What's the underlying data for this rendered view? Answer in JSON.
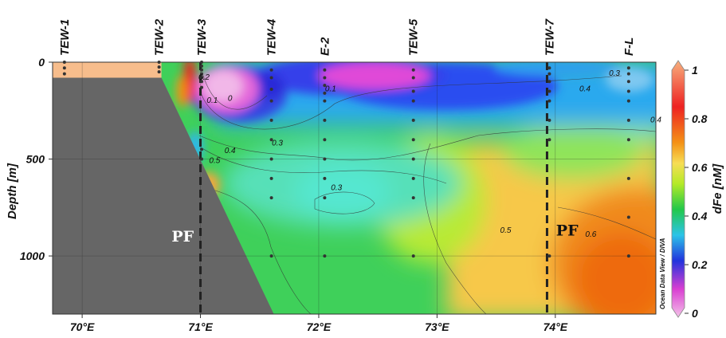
{
  "chart_data": {
    "type": "heatmap",
    "title": "",
    "xlabel": "",
    "ylabel": "Depth [m]",
    "xlim": [
      69.75,
      74.85
    ],
    "ylim": [
      1300,
      0
    ],
    "x_ticks": [
      {
        "value": 70,
        "label": "70°E"
      },
      {
        "value": 71,
        "label": "71°E"
      },
      {
        "value": 72,
        "label": "72°E"
      },
      {
        "value": 73,
        "label": "73°E"
      },
      {
        "value": 74,
        "label": "74°E"
      }
    ],
    "y_ticks": [
      {
        "value": 0,
        "label": "0"
      },
      {
        "value": 500,
        "label": "500"
      },
      {
        "value": 1000,
        "label": "1000"
      }
    ],
    "colorbar": {
      "label": "dFe [nM]",
      "min": 0,
      "max": 1,
      "ticks": [
        {
          "value": 0,
          "label": "0"
        },
        {
          "value": 0.2,
          "label": "0.2"
        },
        {
          "value": 0.4,
          "label": "0.4"
        },
        {
          "value": 0.6,
          "label": "0.6"
        },
        {
          "value": 0.8,
          "label": "0.8"
        },
        {
          "value": 1,
          "label": "1"
        }
      ],
      "colors": [
        "#f4c2e8",
        "#d93fd2",
        "#2233dd",
        "#2bc4e8",
        "#22c84a",
        "#b4ea28",
        "#f7dd55",
        "#f49216",
        "#ee2222",
        "#f7b07e"
      ]
    },
    "stations": [
      {
        "name": "TEW-1",
        "lon": 69.85,
        "depths": [
          0,
          30,
          60
        ]
      },
      {
        "name": "TEW-2",
        "lon": 70.65,
        "depths": [
          0,
          25,
          50
        ]
      },
      {
        "name": "TEW-3",
        "lon": 71.01,
        "depths": [
          0,
          20,
          40,
          60,
          80,
          100,
          130,
          450,
          500
        ]
      },
      {
        "name": "TEW-4",
        "lon": 71.6,
        "depths": [
          40,
          80,
          140,
          200,
          300,
          400,
          500,
          600,
          700,
          1000
        ]
      },
      {
        "name": "E-2",
        "lon": 72.05,
        "depths": [
          40,
          80,
          120,
          160,
          200,
          300,
          400,
          500,
          600,
          700,
          1000
        ]
      },
      {
        "name": "TEW-5",
        "lon": 72.8,
        "depths": [
          40,
          80,
          150,
          200,
          300,
          400,
          500,
          600,
          700,
          1000
        ]
      },
      {
        "name": "TEW-7",
        "lon": 73.95,
        "depths": [
          30,
          60,
          100,
          150,
          200,
          300,
          400,
          1000
        ]
      },
      {
        "name": "F-L",
        "lon": 74.62,
        "depths": [
          30,
          60,
          100,
          150,
          200,
          300,
          400,
          600,
          800,
          1000
        ]
      }
    ],
    "bathymetry": [
      [
        69.75,
        80
      ],
      [
        70.67,
        80
      ],
      [
        71.62,
        1300
      ],
      [
        69.75,
        1300
      ]
    ],
    "fronts": [
      {
        "name": "PF",
        "lon": 71.0,
        "label_lon": 70.85,
        "label_depth": 925,
        "label_color": "#ffffff"
      },
      {
        "name": "PF",
        "lon": 73.93,
        "label_lon": 74.1,
        "label_depth": 895,
        "label_color": "#111111"
      }
    ],
    "contour_labels": [
      {
        "text": "0",
        "lon": 71.25,
        "depth": 200
      },
      {
        "text": "0.1",
        "lon": 71.1,
        "depth": 210
      },
      {
        "text": "0.2",
        "lon": 71.03,
        "depth": 90
      },
      {
        "text": "0.1",
        "lon": 72.1,
        "depth": 150
      },
      {
        "text": "0.3",
        "lon": 71.65,
        "depth": 430
      },
      {
        "text": "0.4",
        "lon": 71.25,
        "depth": 470
      },
      {
        "text": "0.5",
        "lon": 71.12,
        "depth": 520
      },
      {
        "text": "0.3",
        "lon": 72.15,
        "depth": 660
      },
      {
        "text": "0.3",
        "lon": 74.5,
        "depth": 70
      },
      {
        "text": "0.4",
        "lon": 74.25,
        "depth": 150
      },
      {
        "text": "0.4",
        "lon": 74.85,
        "depth": 310
      },
      {
        "text": "0.5",
        "lon": 73.58,
        "depth": 880
      },
      {
        "text": "0.6",
        "lon": 74.3,
        "depth": 900
      }
    ],
    "credit": "Ocean Data View / DIVA",
    "grid": true
  }
}
